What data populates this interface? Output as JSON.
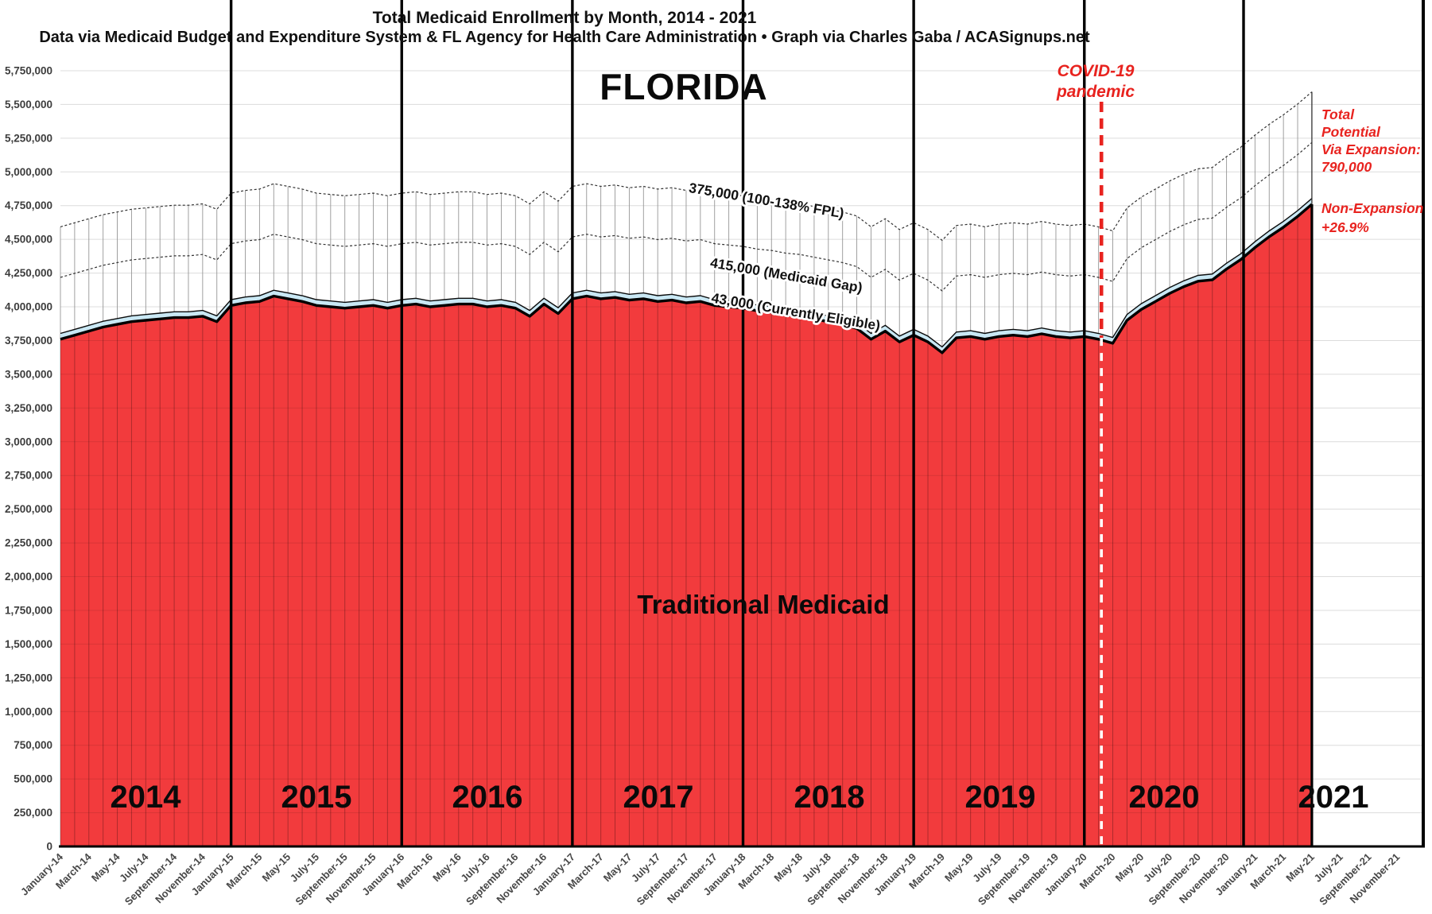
{
  "header": {
    "title": "Total Medicaid Enrollment by Month, 2014 - 2021",
    "subtitle": "Data via Medicaid Budget and Expenditure System & FL Agency for Health Care Administration  •  Graph via Charles Gaba / ACASignups.net"
  },
  "chart_data": {
    "type": "area",
    "title": "Total Medicaid Enrollment by Month, 2014 - 2021",
    "state_label": "FLORIDA",
    "area_label": "Traditional Medicaid",
    "ylim": [
      0,
      5750000
    ],
    "y_tick_step": 250000,
    "x_axis_months_total": 96,
    "grid": true,
    "x_tick_labels": [
      "January-14",
      "March-14",
      "May-14",
      "July-14",
      "September-14",
      "November-14",
      "January-15",
      "March-15",
      "May-15",
      "July-15",
      "September-15",
      "November-15",
      "January-16",
      "March-16",
      "May-16",
      "July-16",
      "September-16",
      "November-16",
      "January-17",
      "March-17",
      "May-17",
      "July-17",
      "September-17",
      "November-17",
      "January-18",
      "March-18",
      "May-18",
      "July-18",
      "September-18",
      "November-18",
      "January-19",
      "March-19",
      "May-19",
      "July-19",
      "September-19",
      "November-19",
      "January-20",
      "March-20",
      "May-20",
      "July-20",
      "September-20",
      "November-20",
      "January-21",
      "March-21",
      "May-21",
      "July-21",
      "September-21",
      "November-21"
    ],
    "year_labels": [
      "2014",
      "2015",
      "2016",
      "2017",
      "2018",
      "2019",
      "2020",
      "2021"
    ],
    "series": [
      {
        "name": "Traditional Medicaid",
        "first_month": "January-14",
        "last_month": "May-21",
        "values": [
          3760000,
          3790000,
          3820000,
          3850000,
          3870000,
          3890000,
          3900000,
          3910000,
          3920000,
          3920000,
          3930000,
          3890000,
          4010000,
          4030000,
          4040000,
          4080000,
          4060000,
          4040000,
          4010000,
          4000000,
          3990000,
          4000000,
          4010000,
          3990000,
          4010000,
          4020000,
          4000000,
          4010000,
          4020000,
          4020000,
          4000000,
          4010000,
          3990000,
          3930000,
          4020000,
          3950000,
          4060000,
          4080000,
          4060000,
          4070000,
          4050000,
          4060000,
          4040000,
          4050000,
          4030000,
          4040000,
          4010000,
          4000000,
          3990000,
          3970000,
          3960000,
          3940000,
          3930000,
          3910000,
          3890000,
          3870000,
          3840000,
          3760000,
          3820000,
          3740000,
          3790000,
          3740000,
          3660000,
          3770000,
          3780000,
          3760000,
          3780000,
          3790000,
          3780000,
          3800000,
          3780000,
          3770000,
          3780000,
          3760000,
          3730000,
          3900000,
          3980000,
          4040000,
          4100000,
          4150000,
          4190000,
          4200000,
          4280000,
          4350000,
          4440000,
          4520000,
          4590000,
          4670000,
          4760000
        ]
      }
    ],
    "bands": [
      {
        "name": "currently-eligible",
        "size": 43000,
        "label": "43,000 (Currently Eligible)",
        "style": "solid-blue"
      },
      {
        "name": "medicaid-gap",
        "size": 415000,
        "label": "415,000 (Medicaid Gap)",
        "style": "hatched"
      },
      {
        "name": "fpl-100-138",
        "size": 375000,
        "label": "375,000 (100-138% FPL)",
        "style": "hatched"
      }
    ],
    "annotations": {
      "covid_lines": [
        "COVID-19",
        "pandemic"
      ],
      "covid_month_index": 73.2,
      "total_potential_lines": [
        "Total",
        "Potential",
        "Via Expansion:",
        "790,000"
      ],
      "non_expansion_lines": [
        "Non-Expansion",
        "+26.9%"
      ]
    },
    "colors": {
      "traditional_red": "#f23b3d",
      "eligible_blue": "#c9e8f4",
      "annotation_red": "#e8231f",
      "gridline": "#dcdcdc",
      "hatch_line": "#969696",
      "axis_black": "#000000",
      "tick_text": "#474747"
    }
  }
}
